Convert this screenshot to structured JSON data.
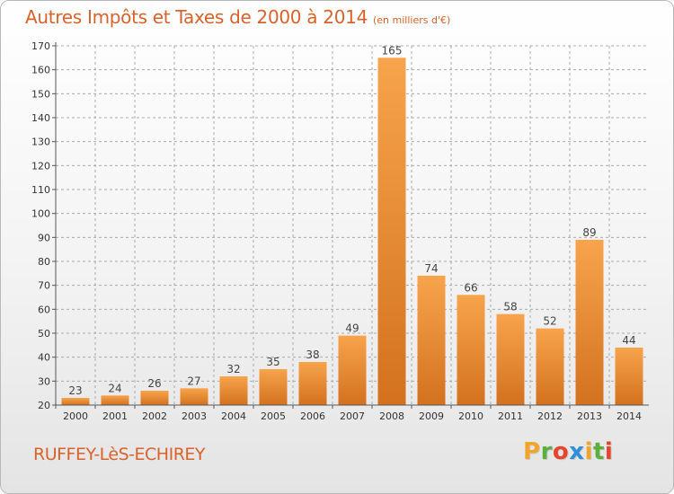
{
  "header": {
    "title": "Autres Impôts et Taxes de 2000 à 2014",
    "subtitle": "(en milliers d'€)"
  },
  "footer": {
    "place": "RUFFEY-LèS-ECHIREY",
    "logo_letters": [
      "P",
      "r",
      "o",
      "x",
      "i",
      "t",
      "i"
    ],
    "logo_colors": [
      "#f2a52b",
      "#59b03c",
      "#e6452b",
      "#2f8fd8",
      "#f2a52b",
      "#59b03c",
      "#e6452b"
    ]
  },
  "colors": {
    "bar_light": "#f7a44c",
    "bar_dark": "#d3711f",
    "grid": "#aaaaaa",
    "title": "#d9622b"
  },
  "chart_data": {
    "type": "bar",
    "title": "Autres Impôts et Taxes de 2000 à 2014",
    "subtitle": "(en milliers d'€)",
    "categories": [
      "2000",
      "2001",
      "2002",
      "2003",
      "2004",
      "2005",
      "2006",
      "2007",
      "2008",
      "2009",
      "2010",
      "2011",
      "2012",
      "2013",
      "2014"
    ],
    "values": [
      23,
      24,
      26,
      27,
      32,
      35,
      38,
      49,
      165,
      74,
      66,
      58,
      52,
      89,
      44
    ],
    "ylim": [
      20,
      170
    ],
    "yticks": [
      20,
      30,
      40,
      50,
      60,
      70,
      80,
      90,
      100,
      110,
      120,
      130,
      140,
      150,
      160,
      170
    ],
    "grid": "horizontal dashed",
    "xlabel": "",
    "ylabel": ""
  }
}
